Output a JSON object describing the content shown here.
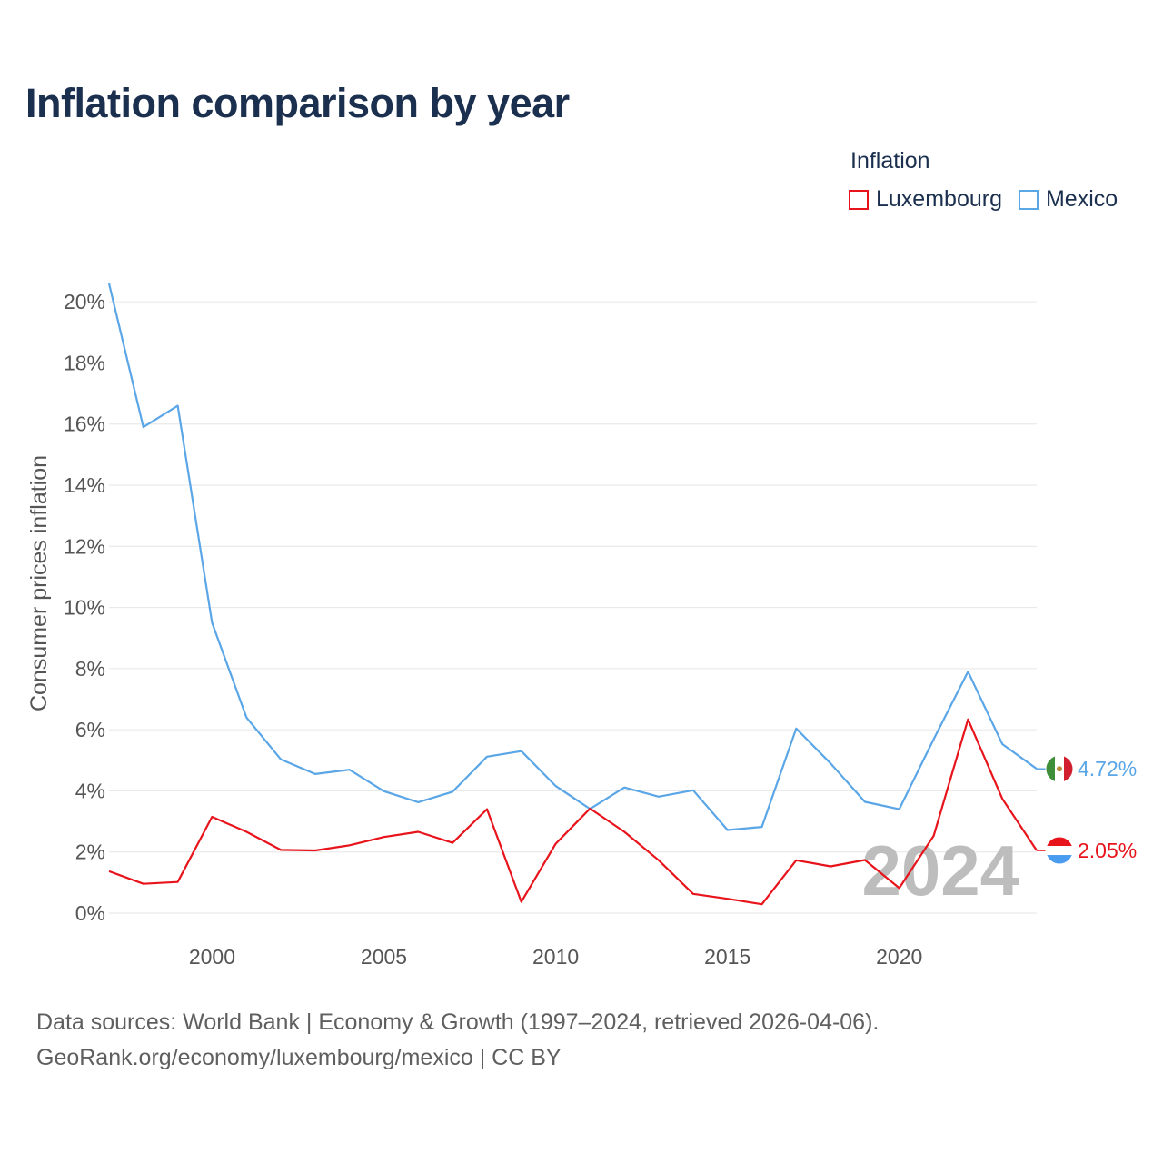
{
  "title": "Inflation comparison by year",
  "legend": {
    "title": "Inflation",
    "items": [
      {
        "label": "Luxembourg",
        "color": "#e8141c"
      },
      {
        "label": "Mexico",
        "color": "#5aa6e6"
      }
    ]
  },
  "source": {
    "line1": "Data sources: World Bank | Economy & Growth (1997–2024, retrieved 2026-04-06).",
    "line2": "GeoRank.org/economy/luxembourg/mexico | CC BY"
  },
  "chart_data": {
    "type": "line",
    "ylabel": "Consumer prices inflation",
    "xlim": [
      1997,
      2024
    ],
    "ylim": [
      0,
      20.6
    ],
    "yticks": [
      0,
      2,
      4,
      6,
      8,
      10,
      12,
      14,
      16,
      18,
      20
    ],
    "ytick_labels": [
      "0%",
      "2%",
      "4%",
      "6%",
      "8%",
      "10%",
      "12%",
      "14%",
      "16%",
      "18%",
      "20%"
    ],
    "xticks": [
      2000,
      2005,
      2010,
      2015,
      2020
    ],
    "xtick_labels": [
      "2000",
      "2005",
      "2010",
      "2015",
      "2020"
    ],
    "watermark_year": "2024",
    "x": [
      1997,
      1998,
      1999,
      2000,
      2001,
      2002,
      2003,
      2004,
      2005,
      2006,
      2007,
      2008,
      2009,
      2010,
      2011,
      2012,
      2013,
      2014,
      2015,
      2016,
      2017,
      2018,
      2019,
      2020,
      2021,
      2022,
      2023,
      2024
    ],
    "series": [
      {
        "name": "Mexico",
        "color": "#5aa6e6",
        "end_label": "4.72%",
        "flag": "mexico-flag-icon",
        "values": [
          20.6,
          15.9,
          16.6,
          9.5,
          6.4,
          5.03,
          4.55,
          4.69,
          3.99,
          3.63,
          3.97,
          5.12,
          5.3,
          4.16,
          3.41,
          4.11,
          3.81,
          4.02,
          2.72,
          2.82,
          6.04,
          4.9,
          3.64,
          3.4,
          5.69,
          7.9,
          5.53,
          4.72
        ]
      },
      {
        "name": "Luxembourg",
        "color": "#e8141c",
        "end_label": "2.05%",
        "flag": "luxembourg-flag-icon",
        "values": [
          1.37,
          0.96,
          1.02,
          3.15,
          2.66,
          2.07,
          2.05,
          2.22,
          2.49,
          2.66,
          2.3,
          3.4,
          0.37,
          2.27,
          3.42,
          2.66,
          1.73,
          0.63,
          0.47,
          0.29,
          1.73,
          1.53,
          1.74,
          0.82,
          2.53,
          6.34,
          3.74,
          2.05
        ]
      }
    ]
  }
}
